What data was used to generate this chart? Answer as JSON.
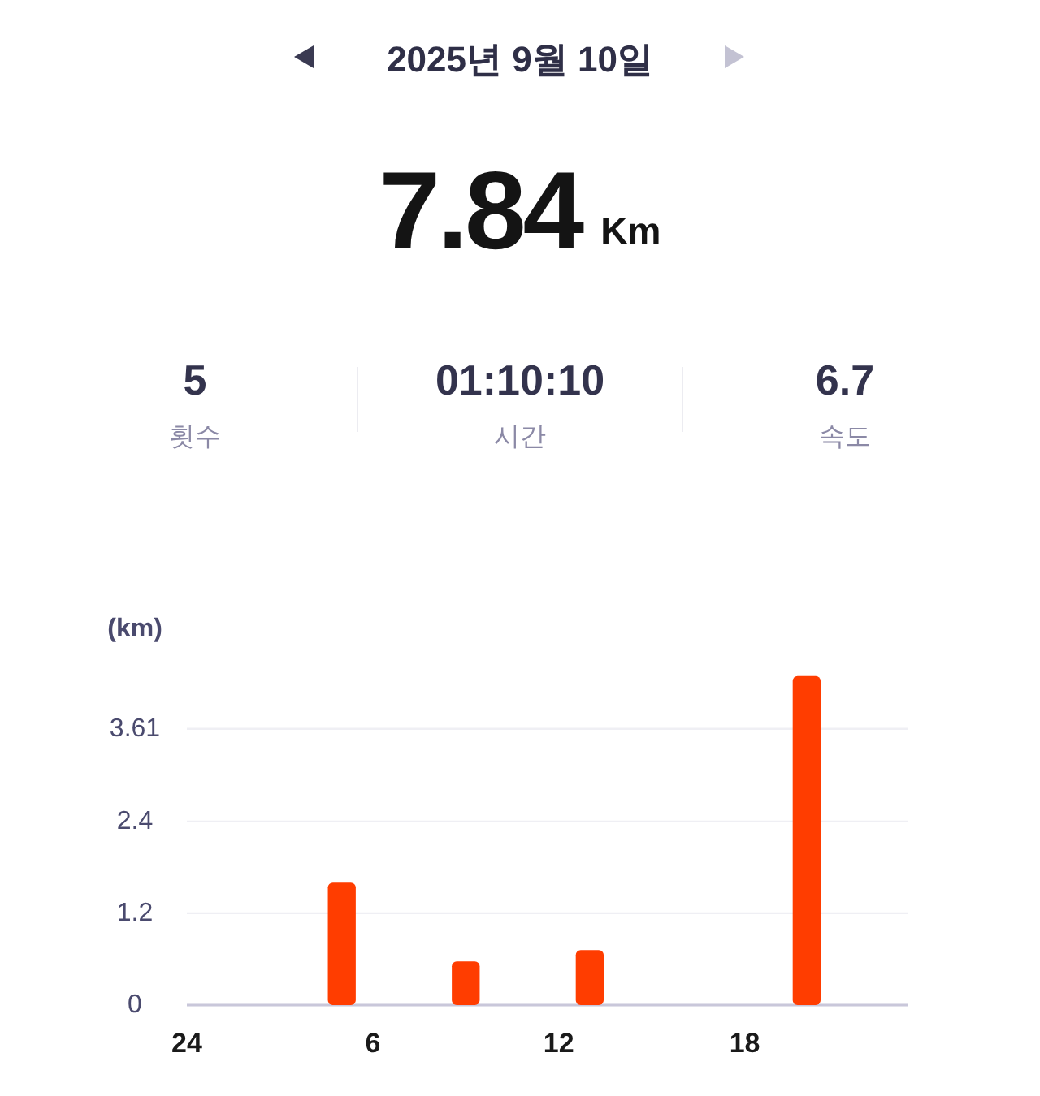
{
  "chart_data": {
    "type": "bar",
    "title": "2025년 9월 10일",
    "annotations": [
      "7.84",
      "Km",
      "5",
      "횟수",
      "01:10:10",
      "시간",
      "6.7",
      "속도"
    ],
    "ylabel": "(km)",
    "categories": [
      "24",
      null,
      null,
      null,
      null,
      null,
      "6",
      null,
      null,
      null,
      null,
      null,
      "12",
      null,
      null,
      null,
      null,
      null,
      "18",
      null,
      null,
      null,
      null,
      null
    ],
    "values": [
      null,
      null,
      null,
      null,
      null,
      1.6,
      null,
      null,
      null,
      0.57,
      null,
      null,
      null,
      0.72,
      null,
      null,
      null,
      null,
      null,
      null,
      4.3,
      null,
      null,
      null
    ],
    "color": "#ff3d00",
    "ylim": [
      0,
      4.3
    ],
    "yticks": [
      0,
      1.2,
      2.4,
      3.61
    ],
    "grid": "y"
  }
}
